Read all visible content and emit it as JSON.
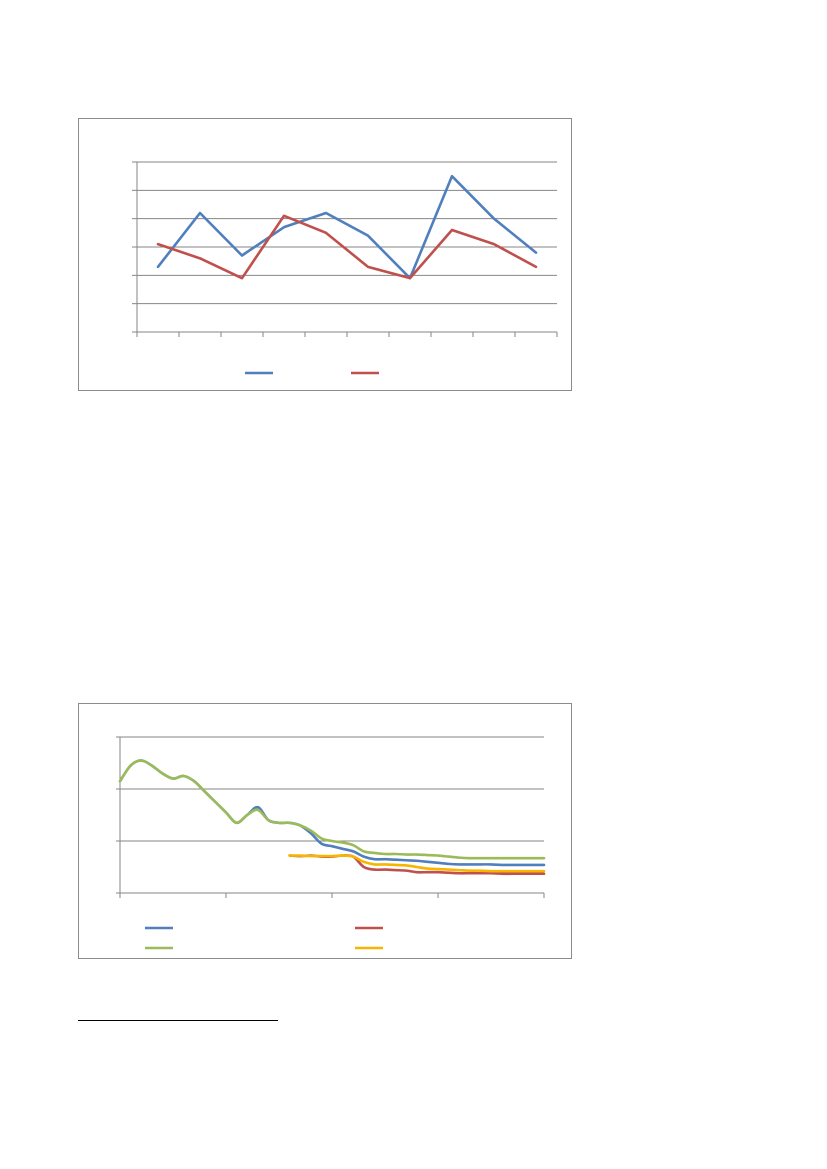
{
  "colors": {
    "blue": "#4f7fbd",
    "red": "#c0504d",
    "green": "#9bbb59",
    "yellow": "#f7b500",
    "grid": "#868686"
  },
  "chart_data": [
    {
      "type": "line",
      "title": "",
      "xlabel": "",
      "ylabel": "",
      "ylim": [
        0,
        6
      ],
      "x": [
        1,
        2,
        3,
        4,
        5,
        6,
        7,
        8,
        9,
        10
      ],
      "grid": "horizontal",
      "legend": "bottom",
      "series": [
        {
          "color": "#4f7fbd",
          "values": [
            2.3,
            4.2,
            2.7,
            3.7,
            4.2,
            3.4,
            1.9,
            5.5,
            4.0,
            2.8
          ]
        },
        {
          "color": "#c0504d",
          "values": [
            3.1,
            2.6,
            1.9,
            4.1,
            3.5,
            2.3,
            1.9,
            3.6,
            3.1,
            2.3
          ]
        }
      ]
    },
    {
      "type": "line",
      "title": "",
      "xlabel": "",
      "ylabel": "",
      "ylim": [
        0,
        3
      ],
      "xlim": [
        0,
        40
      ],
      "grid": "horizontal",
      "legend": "bottom",
      "series": [
        {
          "color": "#4f7fbd",
          "x": [
            0,
            1,
            2,
            3,
            4,
            5,
            6,
            7,
            8,
            9,
            10,
            11,
            12,
            13,
            14,
            15,
            16,
            17,
            18,
            19,
            20,
            21,
            22,
            23,
            24,
            25,
            26,
            27,
            28,
            29,
            30,
            31,
            32,
            33,
            34,
            35,
            36,
            37,
            38,
            39,
            40
          ],
          "values": [
            2.15,
            2.45,
            2.55,
            2.45,
            2.3,
            2.2,
            2.25,
            2.15,
            1.95,
            1.75,
            1.55,
            1.35,
            1.5,
            1.65,
            1.4,
            1.35,
            1.35,
            1.3,
            1.15,
            0.95,
            0.9,
            0.85,
            0.8,
            0.7,
            0.65,
            0.65,
            0.64,
            0.63,
            0.62,
            0.6,
            0.58,
            0.56,
            0.55,
            0.55,
            0.55,
            0.55,
            0.54,
            0.54,
            0.54,
            0.54,
            0.54
          ]
        },
        {
          "color": "#c0504d",
          "x": [
            16,
            17,
            18,
            19,
            20,
            21,
            22,
            23,
            24,
            25,
            26,
            27,
            28,
            29,
            30,
            31,
            32,
            33,
            34,
            35,
            36,
            37,
            38,
            39,
            40
          ],
          "values": [
            0.72,
            0.71,
            0.72,
            0.7,
            0.7,
            0.72,
            0.7,
            0.5,
            0.45,
            0.45,
            0.44,
            0.43,
            0.4,
            0.4,
            0.4,
            0.39,
            0.38,
            0.38,
            0.38,
            0.38,
            0.37,
            0.37,
            0.37,
            0.37,
            0.37
          ]
        },
        {
          "color": "#9bbb59",
          "x": [
            0,
            1,
            2,
            3,
            4,
            5,
            6,
            7,
            8,
            9,
            10,
            11,
            12,
            13,
            14,
            15,
            16,
            17,
            18,
            19,
            20,
            21,
            22,
            23,
            24,
            25,
            26,
            27,
            28,
            29,
            30,
            31,
            32,
            33,
            34,
            35,
            36,
            37,
            38,
            39,
            40
          ],
          "values": [
            2.15,
            2.45,
            2.55,
            2.45,
            2.3,
            2.2,
            2.25,
            2.15,
            1.95,
            1.75,
            1.55,
            1.35,
            1.5,
            1.6,
            1.4,
            1.35,
            1.35,
            1.3,
            1.2,
            1.05,
            1.0,
            0.97,
            0.92,
            0.8,
            0.77,
            0.75,
            0.75,
            0.74,
            0.74,
            0.73,
            0.72,
            0.7,
            0.68,
            0.67,
            0.67,
            0.67,
            0.67,
            0.67,
            0.67,
            0.67,
            0.67
          ]
        },
        {
          "color": "#f7b500",
          "x": [
            16,
            17,
            18,
            19,
            20,
            21,
            22,
            23,
            24,
            25,
            26,
            27,
            28,
            29,
            30,
            31,
            32,
            33,
            34,
            35,
            36,
            37,
            38,
            39,
            40
          ],
          "values": [
            0.72,
            0.72,
            0.71,
            0.71,
            0.71,
            0.72,
            0.7,
            0.6,
            0.55,
            0.55,
            0.54,
            0.53,
            0.5,
            0.47,
            0.46,
            0.45,
            0.44,
            0.43,
            0.43,
            0.42,
            0.42,
            0.42,
            0.42,
            0.42,
            0.42
          ]
        }
      ]
    }
  ]
}
